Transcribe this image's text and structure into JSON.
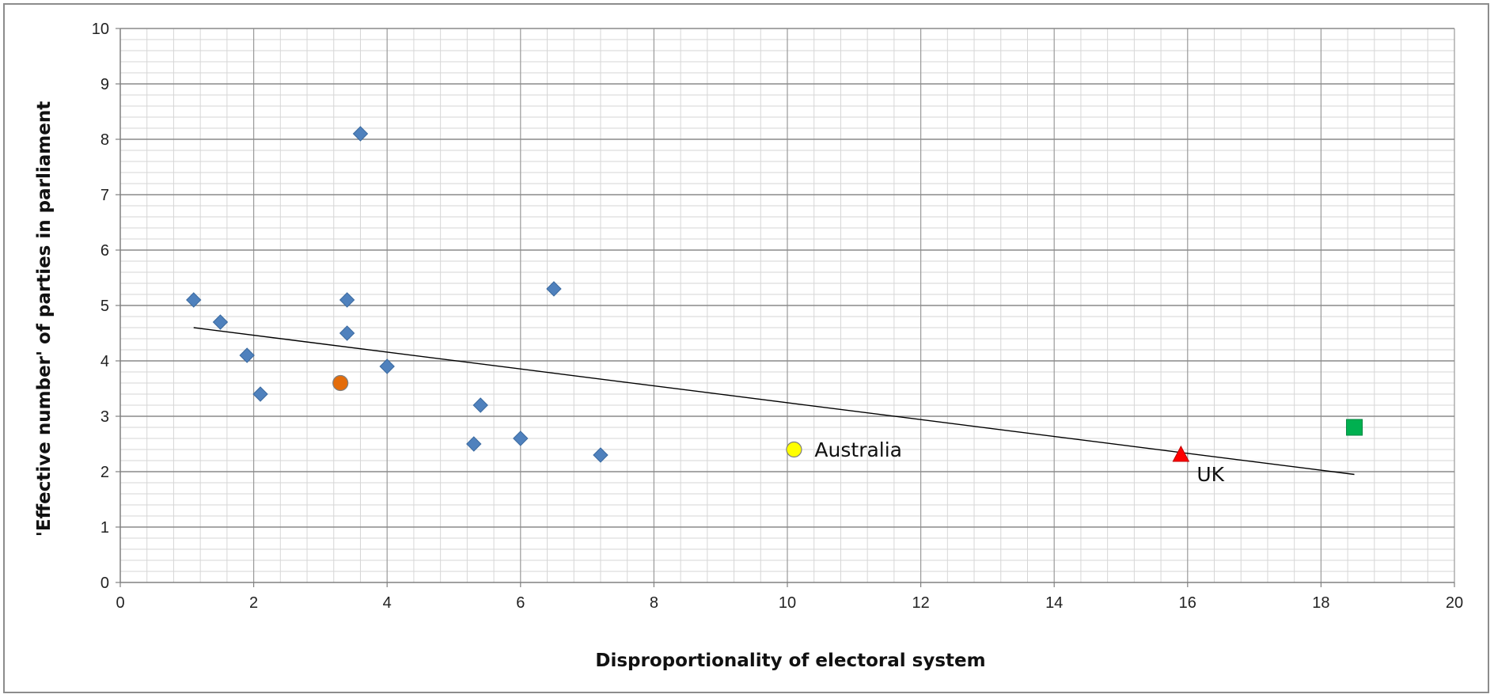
{
  "chart_data": {
    "type": "scatter",
    "title": "",
    "xlabel": "Disproportionality of electoral system",
    "ylabel": "'Effective number' of parties in parliament",
    "xlim": [
      0,
      20
    ],
    "ylim": [
      0,
      10
    ],
    "x_ticks": [
      "0",
      "2",
      "4",
      "6",
      "8",
      "10",
      "12",
      "14",
      "16",
      "18",
      "20"
    ],
    "y_ticks": [
      "0",
      "1",
      "2",
      "3",
      "4",
      "5",
      "6",
      "7",
      "8",
      "9",
      "10"
    ],
    "grid": true,
    "legend": "none",
    "series": [
      {
        "marker": "diamond",
        "color": "#4f81bd",
        "points": [
          {
            "x": 1.1,
            "y": 5.1
          },
          {
            "x": 1.5,
            "y": 4.7
          },
          {
            "x": 1.9,
            "y": 4.1
          },
          {
            "x": 2.1,
            "y": 3.4
          },
          {
            "x": 3.4,
            "y": 5.1
          },
          {
            "x": 3.4,
            "y": 4.5
          },
          {
            "x": 3.6,
            "y": 8.1
          },
          {
            "x": 4.0,
            "y": 3.9
          },
          {
            "x": 5.3,
            "y": 2.5
          },
          {
            "x": 5.4,
            "y": 3.2
          },
          {
            "x": 6.0,
            "y": 2.6
          },
          {
            "x": 6.5,
            "y": 5.3
          },
          {
            "x": 7.2,
            "y": 2.3
          }
        ]
      },
      {
        "marker": "circle",
        "color": "#e46c0a",
        "points": [
          {
            "x": 3.3,
            "y": 3.6
          }
        ]
      },
      {
        "marker": "circle",
        "color": "#ffff00",
        "points": [
          {
            "x": 10.1,
            "y": 2.4,
            "label": "Australia"
          }
        ]
      },
      {
        "marker": "triangle",
        "color": "#ff0000",
        "points": [
          {
            "x": 15.9,
            "y": 2.3,
            "label": "UK"
          }
        ]
      },
      {
        "marker": "square",
        "color": "#00b050",
        "points": [
          {
            "x": 18.5,
            "y": 2.8
          }
        ]
      }
    ],
    "trendline": {
      "type": "linear",
      "color": "#000000",
      "start": {
        "x": 1.1,
        "y": 4.6
      },
      "end": {
        "x": 18.5,
        "y": 1.95
      }
    }
  }
}
